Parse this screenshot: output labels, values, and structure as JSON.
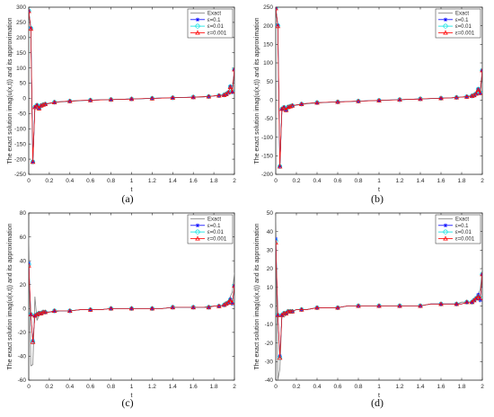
{
  "figure": {
    "x_ticks": [
      "0",
      "0.2",
      "0.4",
      "0.6",
      "0.8",
      "1",
      "1.2",
      "1.4",
      "1.6",
      "1.8",
      "2"
    ]
  },
  "chart_data": [
    {
      "type": "line",
      "caption": "(a)",
      "xlabel": "t",
      "ylabel": "The exact solution imag(u(x,t)) and its approximation",
      "xlim": [
        0,
        2
      ],
      "ylim": [
        -250,
        300
      ],
      "yticks": [
        -250,
        -200,
        -150,
        -100,
        -50,
        0,
        50,
        100,
        150,
        200,
        250,
        300
      ],
      "grid": false,
      "legend_position": "top-right",
      "colors": {
        "Exact": "#808080",
        "ε=0.1": "#0000ff",
        "ε=0.01": "#00e0e0",
        "ε=0.001": "#ff0000"
      },
      "markers": {
        "Exact": "none",
        "ε=0.1": "star",
        "ε=0.01": "circle",
        "ε=0.001": "triangle"
      },
      "legend": [
        "Exact",
        "ε=0.1",
        "ε=0.01",
        "ε=0.001"
      ],
      "x": [
        0,
        0.02,
        0.04,
        0.06,
        0.08,
        0.1,
        0.12,
        0.14,
        0.16,
        0.2,
        0.25,
        0.3,
        0.4,
        0.5,
        0.6,
        0.7,
        0.8,
        0.9,
        1.0,
        1.1,
        1.2,
        1.3,
        1.4,
        1.5,
        1.6,
        1.7,
        1.75,
        1.8,
        1.85,
        1.9,
        1.92,
        1.94,
        1.96,
        1.98,
        2.0
      ],
      "series": [
        {
          "name": "Exact",
          "values": [
            290,
            230,
            -210,
            -30,
            -30,
            -35,
            -25,
            -22,
            -20,
            -17,
            -14,
            -12,
            -10,
            -8,
            -6,
            -5,
            -4,
            -3,
            -2,
            -1,
            0,
            1,
            2,
            3,
            4,
            6,
            7,
            8,
            10,
            12,
            15,
            20,
            25,
            35,
            95
          ]
        },
        {
          "name": "ε=0.1",
          "values": [
            288,
            232,
            -208,
            -28,
            -22,
            -32,
            -24,
            -21,
            -19,
            -16,
            -13,
            -11,
            -9,
            -7,
            -6,
            -5,
            -4,
            -3,
            -2,
            -1,
            0,
            1,
            2,
            3,
            4,
            5,
            6,
            8,
            9,
            11,
            14,
            20,
            40,
            20,
            95
          ]
        },
        {
          "name": "ε=0.01",
          "values": [
            288,
            230,
            -209,
            -29,
            -23,
            -33,
            -24,
            -21,
            -19,
            -16,
            -13,
            -11,
            -9,
            -7,
            -6,
            -5,
            -4,
            -3,
            -2,
            -1,
            0,
            1,
            2,
            3,
            4,
            5,
            6,
            8,
            9,
            11,
            14,
            19,
            38,
            22,
            95
          ]
        },
        {
          "name": "ε=0.001",
          "values": [
            287,
            229,
            -209,
            -29,
            -23,
            -33,
            -24,
            -21,
            -19,
            -16,
            -13,
            -11,
            -9,
            -7,
            -6,
            -5,
            -4,
            -3,
            -2,
            -1,
            0,
            1,
            2,
            3,
            4,
            5,
            6,
            8,
            9,
            11,
            14,
            19,
            37,
            22,
            95
          ]
        }
      ]
    },
    {
      "type": "line",
      "caption": "(b)",
      "xlabel": "t",
      "ylabel": "The exact solution imag(u(x,t)) and its approximation",
      "xlim": [
        0,
        2
      ],
      "ylim": [
        -200,
        250
      ],
      "yticks": [
        -200,
        -150,
        -100,
        -50,
        0,
        50,
        100,
        150,
        200,
        250
      ],
      "grid": false,
      "legend_position": "top-right",
      "colors": {
        "Exact": "#808080",
        "ε=0.1": "#0000ff",
        "ε=0.01": "#00e0e0",
        "ε=0.001": "#ff0000"
      },
      "markers": {
        "Exact": "none",
        "ε=0.1": "star",
        "ε=0.01": "circle",
        "ε=0.001": "triangle"
      },
      "legend": [
        "Exact",
        "ε=0.1",
        "ε=0.01",
        "ε=0.001"
      ],
      "x": [
        0,
        0.02,
        0.04,
        0.06,
        0.08,
        0.1,
        0.12,
        0.14,
        0.16,
        0.2,
        0.25,
        0.3,
        0.4,
        0.5,
        0.6,
        0.7,
        0.8,
        0.9,
        1.0,
        1.1,
        1.2,
        1.3,
        1.4,
        1.5,
        1.6,
        1.7,
        1.75,
        1.8,
        1.85,
        1.9,
        1.92,
        1.94,
        1.96,
        1.98,
        2.0
      ],
      "series": [
        {
          "name": "Exact",
          "values": [
            250,
            200,
            -180,
            -25,
            -24,
            -28,
            -20,
            -18,
            -16,
            -14,
            -12,
            -10,
            -8,
            -6,
            -5,
            -4,
            -3,
            -2,
            -1,
            0,
            1,
            2,
            3,
            4,
            5,
            6,
            7,
            8,
            10,
            12,
            14,
            18,
            22,
            30,
            80
          ]
        },
        {
          "name": "ε=0.1",
          "values": [
            248,
            202,
            -178,
            -24,
            -19,
            -27,
            -19,
            -17,
            -15,
            -13,
            -11,
            -9,
            -7,
            -6,
            -5,
            -4,
            -3,
            -2,
            -1,
            0,
            1,
            2,
            3,
            4,
            5,
            6,
            7,
            8,
            9,
            11,
            13,
            17,
            30,
            18,
            80
          ]
        },
        {
          "name": "ε=0.01",
          "values": [
            248,
            200,
            -179,
            -24,
            -20,
            -27,
            -19,
            -17,
            -15,
            -13,
            -11,
            -9,
            -7,
            -6,
            -5,
            -4,
            -3,
            -2,
            -1,
            0,
            1,
            2,
            3,
            4,
            5,
            6,
            7,
            8,
            9,
            11,
            13,
            17,
            29,
            19,
            80
          ]
        },
        {
          "name": "ε=0.001",
          "values": [
            247,
            199,
            -179,
            -24,
            -20,
            -27,
            -19,
            -17,
            -15,
            -13,
            -11,
            -9,
            -7,
            -6,
            -5,
            -4,
            -3,
            -2,
            -1,
            0,
            1,
            2,
            3,
            4,
            5,
            6,
            7,
            8,
            9,
            11,
            13,
            17,
            28,
            19,
            80
          ]
        }
      ]
    },
    {
      "type": "line",
      "caption": "(c)",
      "xlabel": "t",
      "ylabel": "The exact solution imag(u(x,t)) and its approximation",
      "xlim": [
        0,
        2
      ],
      "ylim": [
        -60,
        80
      ],
      "yticks": [
        -60,
        -40,
        -20,
        0,
        20,
        40,
        60,
        80
      ],
      "grid": false,
      "legend_position": "top-right",
      "colors": {
        "Exact": "#808080",
        "ε=0.1": "#0000ff",
        "ε=0.01": "#00e0e0",
        "ε=0.001": "#ff0000"
      },
      "markers": {
        "Exact": "none",
        "ε=0.1": "star",
        "ε=0.01": "circle",
        "ε=0.001": "triangle"
      },
      "legend": [
        "Exact",
        "ε=0.1",
        "ε=0.01",
        "ε=0.001"
      ],
      "x": [
        0,
        0.02,
        0.04,
        0.06,
        0.08,
        0.1,
        0.12,
        0.14,
        0.16,
        0.2,
        0.25,
        0.3,
        0.4,
        0.5,
        0.6,
        0.7,
        0.8,
        0.9,
        1.0,
        1.1,
        1.2,
        1.3,
        1.4,
        1.5,
        1.6,
        1.7,
        1.75,
        1.8,
        1.85,
        1.9,
        1.92,
        1.94,
        1.96,
        1.98,
        2.0
      ],
      "series": [
        {
          "name": "Exact",
          "values": [
            60,
            -48,
            -47,
            10,
            -10,
            -6,
            -5,
            -4,
            -4,
            -3,
            -3,
            -2,
            -2,
            -1,
            -1,
            -1,
            0,
            0,
            0,
            0,
            0,
            0,
            1,
            1,
            1,
            1,
            2,
            2,
            2,
            3,
            4,
            6,
            10,
            14,
            30
          ]
        },
        {
          "name": "ε=0.1",
          "values": [
            38,
            -5,
            -27,
            -6,
            -5,
            -4,
            -4,
            -3,
            -3,
            -3,
            -2,
            -2,
            -2,
            -1,
            -1,
            -1,
            0,
            0,
            0,
            0,
            0,
            0,
            1,
            1,
            1,
            1,
            1,
            2,
            2,
            3,
            4,
            5,
            8,
            4,
            19
          ]
        },
        {
          "name": "ε=0.01",
          "values": [
            37,
            -5,
            -28,
            -6,
            -5,
            -4,
            -4,
            -3,
            -3,
            -3,
            -2,
            -2,
            -2,
            -1,
            -1,
            -1,
            0,
            0,
            0,
            0,
            0,
            0,
            1,
            1,
            1,
            1,
            1,
            2,
            2,
            3,
            4,
            5,
            7,
            5,
            19
          ]
        },
        {
          "name": "ε=0.001",
          "values": [
            36,
            -5,
            -28,
            -6,
            -5,
            -4,
            -4,
            -3,
            -3,
            -3,
            -2,
            -2,
            -2,
            -1,
            -1,
            -1,
            0,
            0,
            0,
            0,
            0,
            0,
            1,
            1,
            1,
            1,
            1,
            2,
            2,
            3,
            4,
            5,
            7,
            5,
            19
          ]
        }
      ]
    },
    {
      "type": "line",
      "caption": "(d)",
      "xlabel": "t",
      "ylabel": "The exact solution imag(u(x,t)) and its approximation",
      "xlim": [
        0,
        2
      ],
      "ylim": [
        -40,
        50
      ],
      "yticks": [
        -40,
        -30,
        -20,
        -10,
        0,
        10,
        20,
        30,
        40,
        50
      ],
      "grid": false,
      "legend_position": "top-right",
      "colors": {
        "Exact": "#808080",
        "ε=0.1": "#0000ff",
        "ε=0.01": "#00e0e0",
        "ε=0.001": "#ff0000"
      },
      "markers": {
        "Exact": "none",
        "ε=0.1": "star",
        "ε=0.01": "circle",
        "ε=0.001": "triangle"
      },
      "legend": [
        "Exact",
        "ε=0.1",
        "ε=0.01",
        "ε=0.001"
      ],
      "x": [
        0,
        0.02,
        0.04,
        0.06,
        0.08,
        0.1,
        0.12,
        0.14,
        0.16,
        0.2,
        0.25,
        0.3,
        0.4,
        0.5,
        0.6,
        0.7,
        0.8,
        0.9,
        1.0,
        1.1,
        1.2,
        1.3,
        1.4,
        1.5,
        1.6,
        1.7,
        1.75,
        1.8,
        1.85,
        1.9,
        1.92,
        1.94,
        1.96,
        1.98,
        2.0
      ],
      "series": [
        {
          "name": "Exact",
          "values": [
            50,
            -40,
            -34,
            -4,
            -6,
            -5,
            -4,
            -3,
            -3,
            -2,
            -2,
            -2,
            -1,
            -1,
            -1,
            0,
            0,
            0,
            0,
            0,
            0,
            0,
            0,
            1,
            1,
            1,
            1,
            2,
            2,
            2,
            3,
            4,
            6,
            9,
            20
          ]
        },
        {
          "name": "ε=0.1",
          "values": [
            36,
            -5,
            -27,
            -5,
            -4,
            -4,
            -3,
            -3,
            -3,
            -2,
            -2,
            -2,
            -1,
            -1,
            -1,
            0,
            0,
            0,
            0,
            0,
            0,
            0,
            0,
            1,
            1,
            1,
            1,
            1,
            2,
            2,
            3,
            4,
            6,
            3,
            17
          ]
        },
        {
          "name": "ε=0.01",
          "values": [
            35,
            -5,
            -28,
            -5,
            -4,
            -4,
            -3,
            -3,
            -3,
            -2,
            -2,
            -2,
            -1,
            -1,
            -1,
            0,
            0,
            0,
            0,
            0,
            0,
            0,
            0,
            1,
            1,
            1,
            1,
            1,
            2,
            2,
            3,
            4,
            5,
            4,
            17
          ]
        },
        {
          "name": "ε=0.001",
          "values": [
            34,
            -5,
            -28,
            -5,
            -4,
            -4,
            -3,
            -3,
            -3,
            -2,
            -2,
            -2,
            -1,
            -1,
            -1,
            0,
            0,
            0,
            0,
            0,
            0,
            0,
            0,
            1,
            1,
            1,
            1,
            1,
            2,
            2,
            3,
            4,
            5,
            4,
            17
          ]
        }
      ]
    }
  ]
}
